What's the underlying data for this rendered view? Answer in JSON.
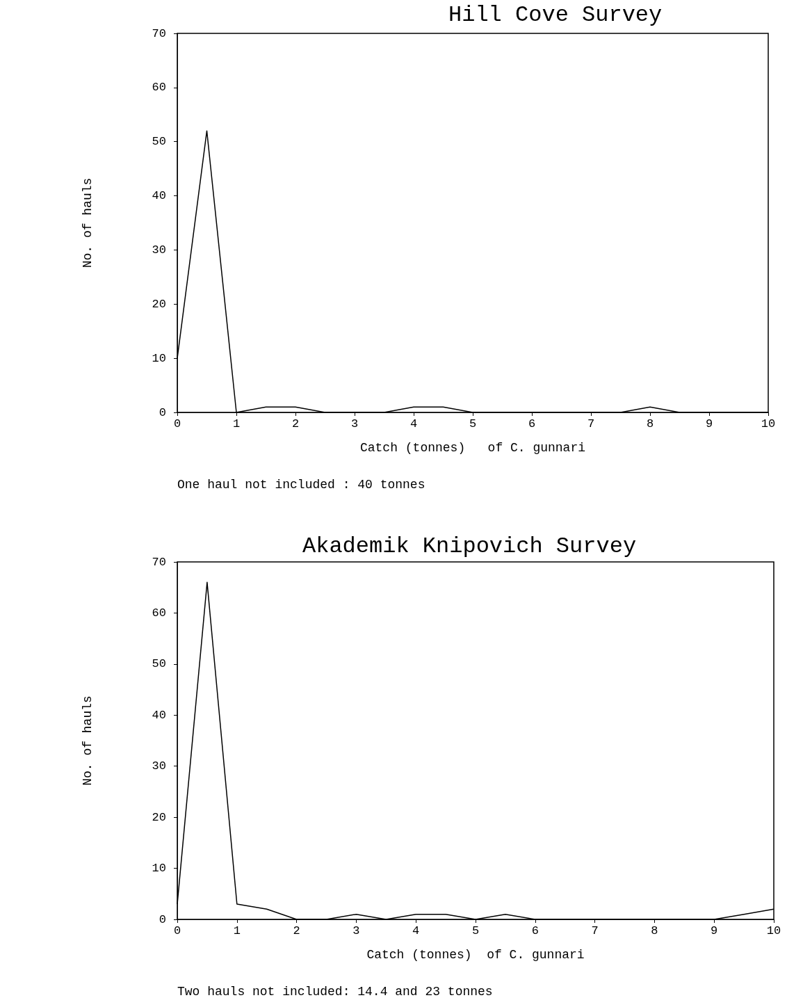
{
  "chart_data": [
    {
      "type": "line",
      "title": "Hill Cove Survey",
      "xlabel": "Catch (tonnes)   of C. gunnari",
      "ylabel": "No. of hauls",
      "annotations": [
        "One haul not included : 40 tonnes"
      ],
      "x": [
        0,
        0.5,
        1,
        1.5,
        2,
        2.5,
        3,
        3.5,
        4,
        4.5,
        5,
        5.5,
        6,
        6.5,
        7,
        7.5,
        8,
        8.5,
        9,
        9.5,
        10
      ],
      "series": [
        {
          "color": "#000000",
          "values": [
            10,
            52,
            0,
            1,
            1,
            0,
            0,
            0,
            1,
            1,
            0,
            0,
            0,
            0,
            0,
            0,
            1,
            0,
            0,
            0,
            0
          ]
        }
      ],
      "xlim": [
        0,
        10
      ],
      "xticks": [
        0,
        1,
        2,
        3,
        4,
        5,
        6,
        7,
        8,
        9,
        10
      ],
      "ylim": [
        0,
        70
      ],
      "yticks": [
        0,
        10,
        20,
        30,
        40,
        50,
        60,
        70
      ],
      "grid": false,
      "marker": "none",
      "line_style": "solid"
    },
    {
      "type": "line",
      "title": "Akademik Knipovich Survey",
      "xlabel": "Catch (tonnes)  of C. gunnari",
      "ylabel": "No. of hauls",
      "annotations": [
        "Two hauls not included: 14.4 and 23 tonnes"
      ],
      "x": [
        0,
        0.5,
        1,
        1.5,
        2,
        2.5,
        3,
        3.5,
        4,
        4.5,
        5,
        5.5,
        6,
        6.5,
        7,
        7.5,
        8,
        8.5,
        9,
        9.5,
        10
      ],
      "series": [
        {
          "color": "#000000",
          "values": [
            3,
            66,
            3,
            2,
            0,
            0,
            1,
            0,
            1,
            1,
            0,
            1,
            0,
            0,
            0,
            0,
            0,
            0,
            0,
            1,
            2
          ]
        }
      ],
      "xlim": [
        0,
        10
      ],
      "xticks": [
        0,
        1,
        2,
        3,
        4,
        5,
        6,
        7,
        8,
        9,
        10
      ],
      "ylim": [
        0,
        70
      ],
      "yticks": [
        0,
        10,
        20,
        30,
        40,
        50,
        60,
        70
      ],
      "grid": false,
      "marker": "none",
      "line_style": "solid"
    }
  ]
}
